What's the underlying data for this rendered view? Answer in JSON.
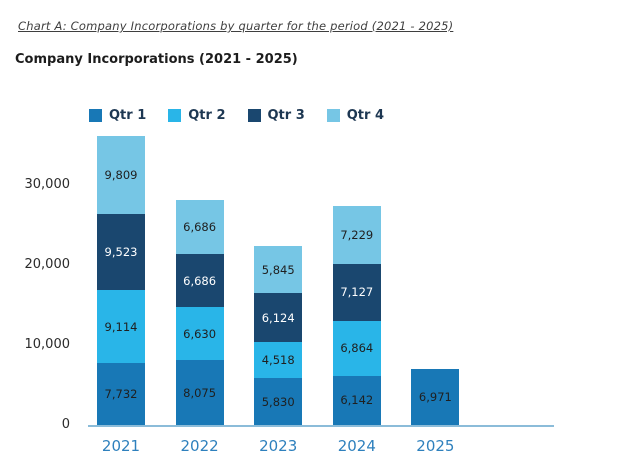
{
  "page": {
    "caption": "Chart A: Company Incorporations by quarter for the period (2021 - 2025)",
    "title": "Company Incorporations (2021 - 2025)"
  },
  "chart_data": {
    "type": "bar",
    "stacked": true,
    "title": "Company Incorporations (2021 - 2025)",
    "categories": [
      "2021",
      "2022",
      "2023",
      "2024",
      "2025"
    ],
    "series": [
      {
        "name": "Qtr 1",
        "color": "#1878b6",
        "label_color": "#1f1f1f",
        "values": [
          7732,
          8075,
          5830,
          6142,
          6971
        ]
      },
      {
        "name": "Qtr 2",
        "color": "#29b5e8",
        "label_color": "#1f1f1f",
        "values": [
          9114,
          6630,
          4518,
          6864,
          null
        ]
      },
      {
        "name": "Qtr 3",
        "color": "#1a476f",
        "label_color": "#ffffff",
        "values": [
          9523,
          6686,
          6124,
          7127,
          null
        ]
      },
      {
        "name": "Qtr 4",
        "color": "#76c6e5",
        "label_color": "#1f1f1f",
        "values": [
          9809,
          6686,
          5845,
          7229,
          null
        ]
      }
    ],
    "y_ticks": [
      "0",
      "10,000",
      "20,000",
      "30,000"
    ],
    "y_tick_values": [
      0,
      10000,
      20000,
      30000
    ],
    "ylim": [
      0,
      37000
    ],
    "grid": false,
    "legend_position": "top-left",
    "legend_entries": [
      "Qtr 1",
      "Qtr 2",
      "Qtr 3",
      "Qtr 4"
    ],
    "axis_line_color": "#8bbcd9",
    "x_label_color": "#2e80bd",
    "legend_text_color": "#1d3752"
  }
}
